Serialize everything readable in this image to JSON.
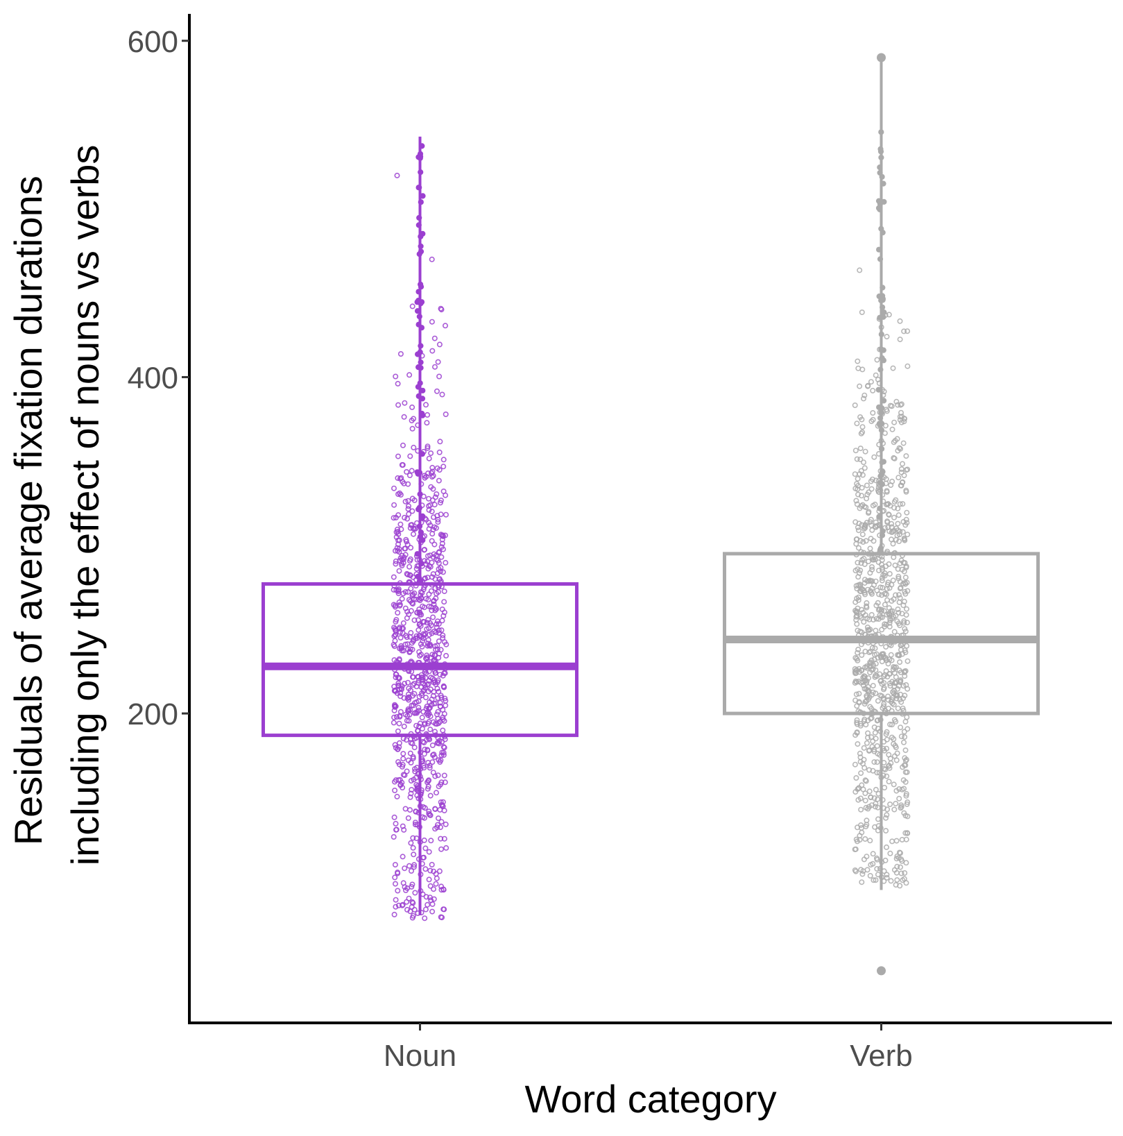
{
  "chart_data": {
    "type": "boxplot",
    "xlabel": "Word category",
    "ylabel_lines": [
      "Residuals of average fixation durations",
      "including only the effect of nouns vs verbs"
    ],
    "categories": [
      "Noun",
      "Verb"
    ],
    "yticks": [
      200,
      400,
      600
    ],
    "ylim": [
      16,
      616
    ],
    "grid": false,
    "boxes": [
      {
        "category": "Noun",
        "color": "#9b3fd0",
        "whisker_low": 80,
        "q1": 187,
        "median": 228,
        "q3": 277,
        "whisker_high": 543,
        "outliers": [],
        "jitter_ymin": 78,
        "jitter_ymax": 540
      },
      {
        "category": "Verb",
        "color": "#aaaaaa",
        "whisker_low": 95,
        "q1": 200,
        "median": 244,
        "q3": 295,
        "whisker_high": 590,
        "outliers": [
          47,
          590
        ],
        "jitter_ymin": 97,
        "jitter_ymax": 548
      }
    ]
  }
}
